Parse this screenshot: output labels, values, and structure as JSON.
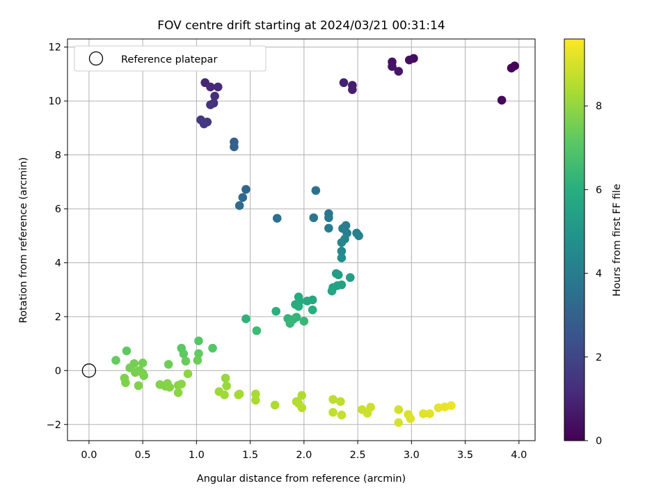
{
  "chart_data": {
    "type": "scatter",
    "title": "FOV centre drift starting at 2024/03/21 00:31:14",
    "xlabel": "Angular distance from reference (arcmin)",
    "ylabel": "Rotation from reference (arcmin)",
    "xlim": [
      -0.2,
      4.15
    ],
    "ylim": [
      -2.6,
      12.3
    ],
    "xticks": [
      "0.0",
      "0.5",
      "1.0",
      "1.5",
      "2.0",
      "2.5",
      "3.0",
      "3.5",
      "4.0"
    ],
    "yticks": [
      "−2",
      "0",
      "2",
      "4",
      "6",
      "8",
      "10",
      "12"
    ],
    "grid": true,
    "legend": {
      "placement": "top-left",
      "entries": [
        "Reference platepar"
      ]
    },
    "colorbar": {
      "label": "Hours from first FF file",
      "range": [
        0,
        9.6
      ],
      "ticks": [
        "0",
        "2",
        "4",
        "6",
        "8"
      ],
      "colormap": "viridis"
    },
    "reference_point": {
      "x": 0,
      "y": 0
    },
    "points": [
      {
        "x": 3.96,
        "y": 11.3,
        "h": 0.05
      },
      {
        "x": 3.93,
        "y": 11.22,
        "h": 0.12
      },
      {
        "x": 3.84,
        "y": 10.03,
        "h": 0.2
      },
      {
        "x": 3.02,
        "y": 11.58,
        "h": 0.3
      },
      {
        "x": 2.98,
        "y": 11.52,
        "h": 0.38
      },
      {
        "x": 2.82,
        "y": 11.45,
        "h": 0.45
      },
      {
        "x": 2.82,
        "y": 11.28,
        "h": 0.52
      },
      {
        "x": 2.88,
        "y": 11.1,
        "h": 0.6
      },
      {
        "x": 2.45,
        "y": 10.58,
        "h": 0.7
      },
      {
        "x": 2.45,
        "y": 10.42,
        "h": 0.78
      },
      {
        "x": 2.37,
        "y": 10.68,
        "h": 0.86
      },
      {
        "x": 1.08,
        "y": 10.68,
        "h": 1.0
      },
      {
        "x": 1.13,
        "y": 10.52,
        "h": 1.08
      },
      {
        "x": 1.2,
        "y": 10.52,
        "h": 1.15
      },
      {
        "x": 1.17,
        "y": 10.18,
        "h": 1.22
      },
      {
        "x": 1.16,
        "y": 9.92,
        "h": 1.3
      },
      {
        "x": 1.13,
        "y": 9.86,
        "h": 1.38
      },
      {
        "x": 1.04,
        "y": 9.3,
        "h": 1.5
      },
      {
        "x": 1.1,
        "y": 9.22,
        "h": 1.57
      },
      {
        "x": 1.07,
        "y": 9.15,
        "h": 1.65
      },
      {
        "x": 1.35,
        "y": 8.48,
        "h": 2.9
      },
      {
        "x": 1.35,
        "y": 8.3,
        "h": 3.0
      },
      {
        "x": 1.46,
        "y": 6.72,
        "h": 3.2
      },
      {
        "x": 1.43,
        "y": 6.42,
        "h": 3.28
      },
      {
        "x": 1.4,
        "y": 6.12,
        "h": 3.36
      },
      {
        "x": 1.75,
        "y": 5.65,
        "h": 3.5
      },
      {
        "x": 2.11,
        "y": 6.68,
        "h": 3.6
      },
      {
        "x": 2.09,
        "y": 5.67,
        "h": 3.7
      },
      {
        "x": 2.23,
        "y": 5.82,
        "h": 3.8
      },
      {
        "x": 2.23,
        "y": 5.67,
        "h": 3.88
      },
      {
        "x": 2.23,
        "y": 5.28,
        "h": 3.95
      },
      {
        "x": 2.39,
        "y": 5.38,
        "h": 4.0
      },
      {
        "x": 2.36,
        "y": 5.27,
        "h": 4.05
      },
      {
        "x": 2.4,
        "y": 5.1,
        "h": 4.1
      },
      {
        "x": 2.49,
        "y": 5.1,
        "h": 4.15
      },
      {
        "x": 2.51,
        "y": 5.0,
        "h": 4.2
      },
      {
        "x": 2.38,
        "y": 4.88,
        "h": 4.3
      },
      {
        "x": 2.35,
        "y": 4.75,
        "h": 4.4
      },
      {
        "x": 2.35,
        "y": 4.43,
        "h": 4.5
      },
      {
        "x": 2.35,
        "y": 4.18,
        "h": 4.6
      },
      {
        "x": 2.3,
        "y": 3.6,
        "h": 5.2
      },
      {
        "x": 2.32,
        "y": 3.55,
        "h": 5.3
      },
      {
        "x": 2.43,
        "y": 3.45,
        "h": 5.35
      },
      {
        "x": 2.35,
        "y": 3.18,
        "h": 5.45
      },
      {
        "x": 2.31,
        "y": 3.15,
        "h": 5.5
      },
      {
        "x": 2.27,
        "y": 3.08,
        "h": 5.55
      },
      {
        "x": 2.26,
        "y": 2.95,
        "h": 5.6
      },
      {
        "x": 2.08,
        "y": 2.62,
        "h": 5.7
      },
      {
        "x": 2.03,
        "y": 2.58,
        "h": 5.75
      },
      {
        "x": 1.95,
        "y": 2.73,
        "h": 5.8
      },
      {
        "x": 1.96,
        "y": 2.58,
        "h": 5.85
      },
      {
        "x": 1.92,
        "y": 2.45,
        "h": 5.9
      },
      {
        "x": 1.95,
        "y": 2.38,
        "h": 5.95
      },
      {
        "x": 2.08,
        "y": 2.25,
        "h": 6.0
      },
      {
        "x": 1.74,
        "y": 2.2,
        "h": 6.05
      },
      {
        "x": 1.46,
        "y": 1.92,
        "h": 6.15
      },
      {
        "x": 1.85,
        "y": 1.93,
        "h": 6.2
      },
      {
        "x": 1.93,
        "y": 1.98,
        "h": 6.25
      },
      {
        "x": 1.9,
        "y": 1.9,
        "h": 6.3
      },
      {
        "x": 1.87,
        "y": 1.75,
        "h": 6.35
      },
      {
        "x": 2.0,
        "y": 1.83,
        "h": 6.4
      },
      {
        "x": 1.56,
        "y": 1.48,
        "h": 6.5
      },
      {
        "x": 1.02,
        "y": 1.1,
        "h": 7.0
      },
      {
        "x": 1.15,
        "y": 0.83,
        "h": 7.05
      },
      {
        "x": 0.86,
        "y": 0.83,
        "h": 7.1
      },
      {
        "x": 0.35,
        "y": 0.73,
        "h": 7.15
      },
      {
        "x": 0.88,
        "y": 0.62,
        "h": 7.2
      },
      {
        "x": 1.02,
        "y": 0.63,
        "h": 7.25
      },
      {
        "x": 0.25,
        "y": 0.38,
        "h": 7.3
      },
      {
        "x": 0.9,
        "y": 0.35,
        "h": 7.35
      },
      {
        "x": 1.01,
        "y": 0.38,
        "h": 7.4
      },
      {
        "x": 0.74,
        "y": 0.23,
        "h": 7.45
      },
      {
        "x": 0.5,
        "y": 0.28,
        "h": 7.5
      },
      {
        "x": 0.42,
        "y": 0.26,
        "h": 7.52
      },
      {
        "x": 0.38,
        "y": 0.1,
        "h": 7.55
      },
      {
        "x": 0.47,
        "y": 0.0,
        "h": 7.58
      },
      {
        "x": 0.43,
        "y": -0.07,
        "h": 7.6
      },
      {
        "x": 0.5,
        "y": -0.1,
        "h": 7.62
      },
      {
        "x": 0.51,
        "y": -0.19,
        "h": 7.65
      },
      {
        "x": 0.33,
        "y": -0.28,
        "h": 7.68
      },
      {
        "x": 0.34,
        "y": -0.45,
        "h": 7.7
      },
      {
        "x": 0.46,
        "y": -0.56,
        "h": 7.72
      },
      {
        "x": 0.66,
        "y": -0.52,
        "h": 7.75
      },
      {
        "x": 0.71,
        "y": -0.58,
        "h": 7.78
      },
      {
        "x": 0.73,
        "y": -0.48,
        "h": 7.8
      },
      {
        "x": 0.75,
        "y": -0.62,
        "h": 7.82
      },
      {
        "x": 0.83,
        "y": -0.55,
        "h": 7.85
      },
      {
        "x": 0.86,
        "y": -0.5,
        "h": 7.88
      },
      {
        "x": 0.83,
        "y": -0.82,
        "h": 7.9
      },
      {
        "x": 0.92,
        "y": -0.12,
        "h": 7.92
      },
      {
        "x": 1.27,
        "y": -0.28,
        "h": 8.05
      },
      {
        "x": 1.28,
        "y": -0.57,
        "h": 8.1
      },
      {
        "x": 1.21,
        "y": -0.78,
        "h": 8.15
      },
      {
        "x": 1.26,
        "y": -0.9,
        "h": 8.2
      },
      {
        "x": 1.39,
        "y": -0.9,
        "h": 8.25
      },
      {
        "x": 1.4,
        "y": -0.87,
        "h": 8.28
      },
      {
        "x": 1.55,
        "y": -0.87,
        "h": 8.32
      },
      {
        "x": 1.55,
        "y": -1.1,
        "h": 8.36
      },
      {
        "x": 1.73,
        "y": -1.28,
        "h": 8.4
      },
      {
        "x": 1.98,
        "y": -0.92,
        "h": 8.45
      },
      {
        "x": 1.93,
        "y": -1.15,
        "h": 8.48
      },
      {
        "x": 1.95,
        "y": -1.22,
        "h": 8.5
      },
      {
        "x": 1.98,
        "y": -1.38,
        "h": 8.55
      },
      {
        "x": 2.27,
        "y": -1.07,
        "h": 8.62
      },
      {
        "x": 2.34,
        "y": -1.15,
        "h": 8.66
      },
      {
        "x": 2.27,
        "y": -1.55,
        "h": 8.7
      },
      {
        "x": 2.35,
        "y": -1.65,
        "h": 8.74
      },
      {
        "x": 2.54,
        "y": -1.45,
        "h": 8.8
      },
      {
        "x": 2.62,
        "y": -1.36,
        "h": 8.84
      },
      {
        "x": 2.59,
        "y": -1.58,
        "h": 8.88
      },
      {
        "x": 2.88,
        "y": -1.45,
        "h": 8.95
      },
      {
        "x": 2.88,
        "y": -1.93,
        "h": 9.0
      },
      {
        "x": 2.97,
        "y": -1.63,
        "h": 9.05
      },
      {
        "x": 2.99,
        "y": -1.78,
        "h": 9.1
      },
      {
        "x": 3.11,
        "y": -1.6,
        "h": 9.15
      },
      {
        "x": 3.17,
        "y": -1.6,
        "h": 9.2
      },
      {
        "x": 3.25,
        "y": -1.38,
        "h": 9.25
      },
      {
        "x": 3.31,
        "y": -1.35,
        "h": 9.3
      },
      {
        "x": 3.37,
        "y": -1.3,
        "h": 9.35
      }
    ]
  }
}
